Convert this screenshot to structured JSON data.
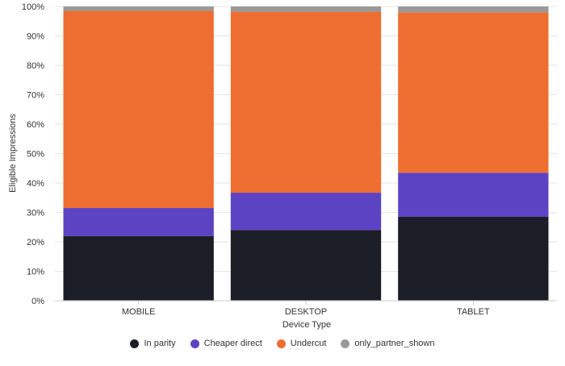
{
  "chart_data": {
    "type": "bar",
    "stacked": true,
    "title": "",
    "xlabel": "Device Type",
    "ylabel": "Eligible Impressions",
    "ylim": [
      0,
      100
    ],
    "yticks": [
      "0%",
      "10%",
      "20%",
      "30%",
      "40%",
      "50%",
      "60%",
      "70%",
      "80%",
      "90%",
      "100%"
    ],
    "grid": true,
    "legend_position": "bottom",
    "categories": [
      "MOBILE",
      "DESKTOP",
      "TABLET"
    ],
    "series": [
      {
        "name": "In parity",
        "color": "#1b1e26",
        "values": [
          22,
          24,
          28.5
        ]
      },
      {
        "name": "Cheaper direct",
        "color": "#5c43c3",
        "values": [
          9.5,
          12.7,
          15
        ]
      },
      {
        "name": "Undercut",
        "color": "#ee6e31",
        "values": [
          67,
          61.5,
          54.5
        ]
      },
      {
        "name": "only_partner_shown",
        "color": "#999999",
        "values": [
          1.5,
          1.8,
          2
        ]
      }
    ]
  }
}
